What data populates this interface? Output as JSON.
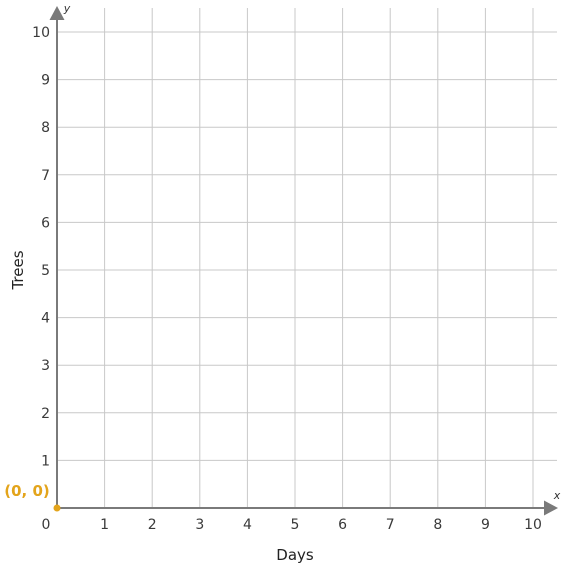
{
  "chart_data": {
    "type": "scatter",
    "xlabel": "Days",
    "ylabel": "Trees",
    "x_axis_letter": "x",
    "y_axis_letter": "y",
    "xlim": [
      0,
      10
    ],
    "ylim": [
      0,
      10
    ],
    "x_ticks": [
      0,
      1,
      2,
      3,
      4,
      5,
      6,
      7,
      8,
      9,
      10
    ],
    "y_ticks": [
      1,
      2,
      3,
      4,
      5,
      6,
      7,
      8,
      9,
      10
    ],
    "grid": true,
    "points": [
      {
        "x": 0,
        "y": 0,
        "label": "(0, 0)",
        "color": "#e3a41b"
      }
    ],
    "colors": {
      "grid": "#c8c8c8",
      "axis": "#7a7a7a"
    }
  }
}
